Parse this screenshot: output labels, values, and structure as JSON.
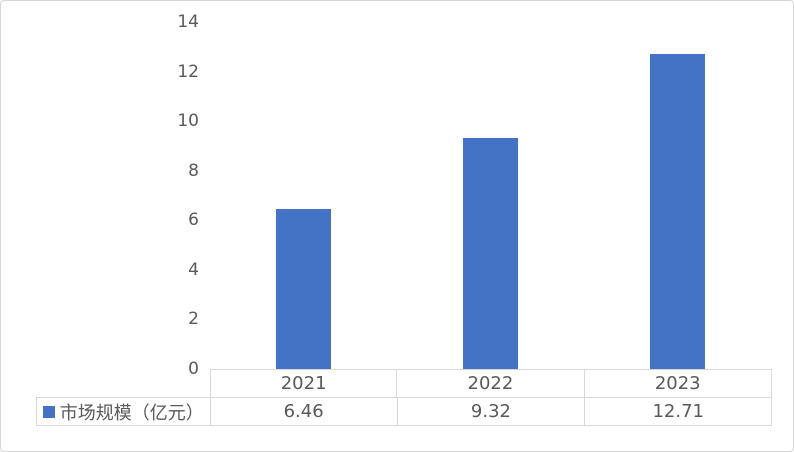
{
  "colors": {
    "bar": "#4472C4",
    "text": "#595959",
    "table_border": "#D9D9D9",
    "frame_border": "#D6D6D6"
  },
  "chart_data": {
    "type": "bar",
    "title": "",
    "xlabel": "",
    "ylabel": "",
    "categories": [
      "2021",
      "2022",
      "2023"
    ],
    "series": [
      {
        "name": "市场规模（亿元）",
        "values": [
          6.46,
          9.32,
          12.71
        ]
      }
    ],
    "ylim": [
      0,
      14
    ],
    "ytick_labels": [
      "14",
      "12",
      "10",
      "8",
      "6",
      "4",
      "2",
      "0"
    ],
    "grid": false,
    "legend_position": "bottom-table"
  },
  "table": {
    "legend_label": "市场规模（亿元）",
    "years": [
      "2021",
      "2022",
      "2023"
    ],
    "values": [
      "6.46",
      "9.32",
      "12.71"
    ]
  }
}
